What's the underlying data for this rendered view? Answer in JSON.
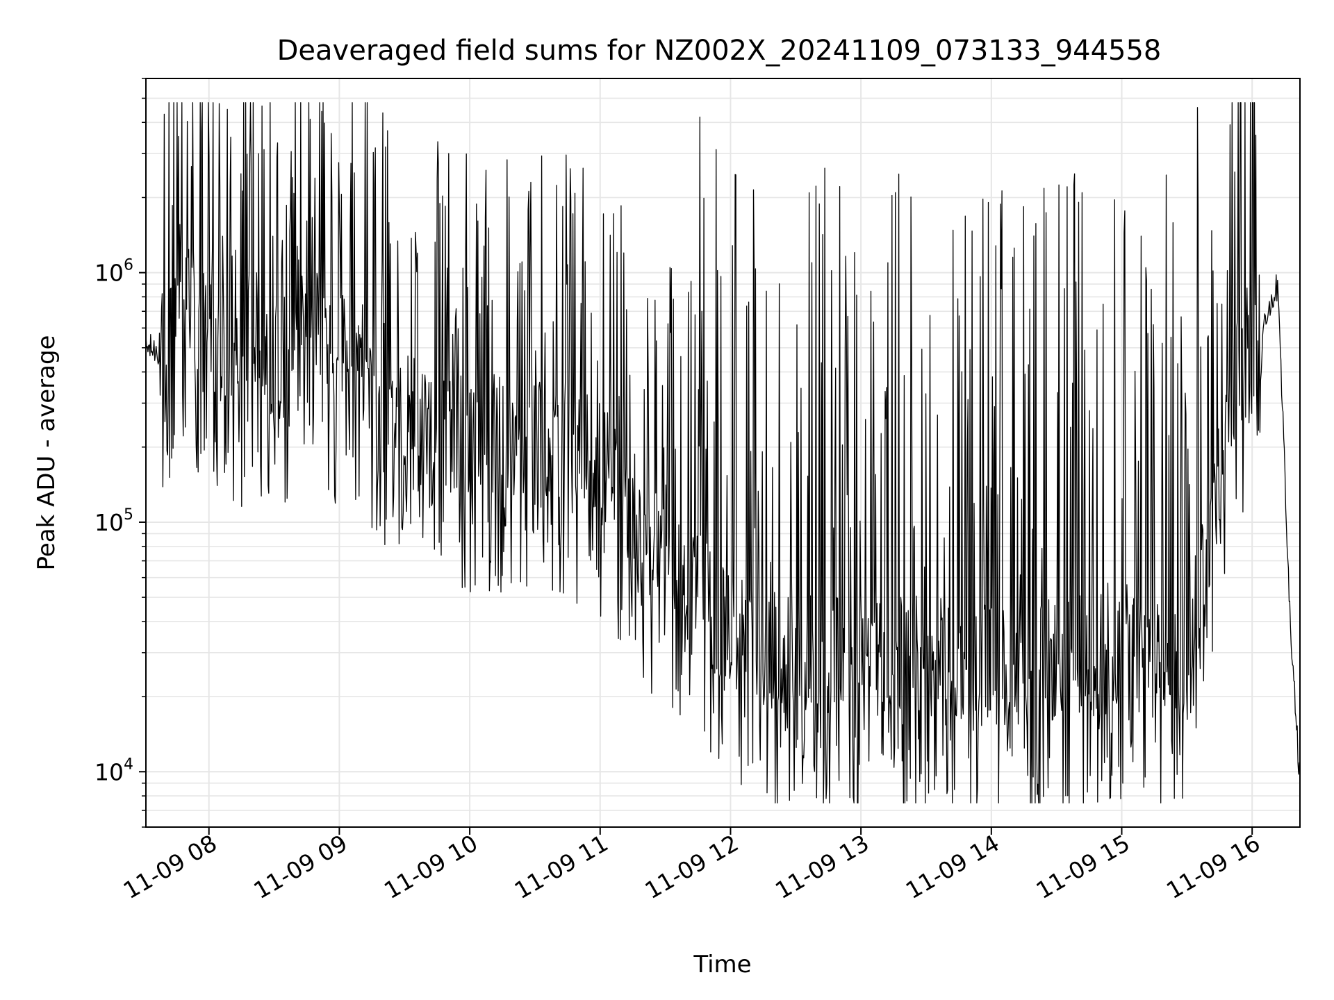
{
  "chart_data": {
    "type": "line",
    "title": "Deaveraged field sums for NZ002X_20241109_073133_944558",
    "xlabel": "Time",
    "ylabel": "Peak ADU - average",
    "yscale": "log",
    "ylim": [
      6000,
      6000000
    ],
    "xlim": [
      "11-09 07:31",
      "11-09 16:22"
    ],
    "grid": true,
    "line_color": "#000000",
    "x_tick_labels": [
      "11-09 08",
      "11-09 09",
      "11-09 10",
      "11-09 11",
      "11-09 12",
      "11-09 13",
      "11-09 14",
      "11-09 15",
      "11-09 16"
    ],
    "y_ticks": [
      {
        "base": "10",
        "exp": "4"
      },
      {
        "base": "10",
        "exp": "5"
      },
      {
        "base": "10",
        "exp": "6"
      }
    ],
    "series": [
      {
        "x": [
          "11-09 07:31",
          "11-09 07:40",
          "11-09 07:45",
          "11-09 07:50",
          "11-09 07:55",
          "11-09 08:00",
          "11-09 08:07",
          "11-09 08:14",
          "11-09 08:20",
          "11-09 08:27",
          "11-09 08:34",
          "11-09 08:40",
          "11-09 08:46",
          "11-09 08:52",
          "11-09 08:58",
          "11-09 09:06",
          "11-09 09:14",
          "11-09 09:22",
          "11-09 09:30",
          "11-09 09:40",
          "11-09 09:50",
          "11-09 10:00",
          "11-09 10:10",
          "11-09 10:20",
          "11-09 10:30",
          "11-09 10:40",
          "11-09 10:50",
          "11-09 11:00",
          "11-09 11:10",
          "11-09 11:20",
          "11-09 11:30",
          "11-09 11:40",
          "11-09 11:50",
          "11-09 12:00",
          "11-09 12:10",
          "11-09 12:20",
          "11-09 12:30",
          "11-09 12:40",
          "11-09 12:50",
          "11-09 13:00",
          "11-09 13:10",
          "11-09 13:20",
          "11-09 13:30",
          "11-09 13:40",
          "11-09 13:50",
          "11-09 14:00",
          "11-09 14:10",
          "11-09 14:20",
          "11-09 14:30",
          "11-09 14:40",
          "11-09 14:50",
          "11-09 15:00",
          "11-09 15:10",
          "11-09 15:20",
          "11-09 15:30",
          "11-09 15:40",
          "11-09 15:50",
          "11-09 16:00",
          "11-09 16:07",
          "11-09 16:12",
          "11-09 16:17",
          "11-09 16:22"
        ],
        "y": [
          500000,
          480000,
          900000,
          950000,
          700000,
          600000,
          500000,
          450000,
          600000,
          500000,
          420000,
          800000,
          700000,
          650000,
          500000,
          450000,
          400000,
          350000,
          300000,
          250000,
          240000,
          230000,
          220000,
          230000,
          210000,
          220000,
          200000,
          180000,
          130000,
          100000,
          80000,
          65000,
          45000,
          38000,
          33000,
          30000,
          28000,
          30000,
          29000,
          30000,
          31000,
          30000,
          29000,
          28000,
          27000,
          27000,
          26000,
          27000,
          28000,
          30000,
          32000,
          33000,
          32000,
          31000,
          33000,
          90000,
          350000,
          550000,
          700000,
          900000,
          50000,
          9000
        ]
      }
    ]
  }
}
